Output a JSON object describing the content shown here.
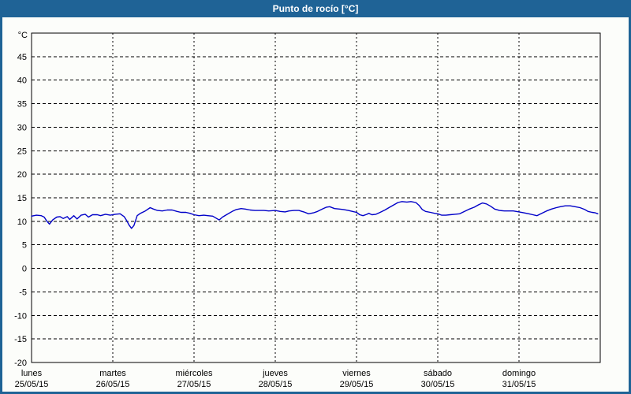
{
  "window": {
    "title": "Punto de rocío [°C]"
  },
  "colors": {
    "titlebar": "#1F6396",
    "frame": "#1F6396",
    "plot_background": "#FCFDFA",
    "plot_border": "#000000",
    "grid": "#000000",
    "line": "#0000C8",
    "title_text": "#FFFFFF",
    "tick_text": "#000000"
  },
  "chart_data": {
    "type": "line",
    "title": "Punto de rocío [°C]",
    "y_unit_label": "°C",
    "ylim": [
      -20,
      50
    ],
    "y_ticks": [
      45,
      40,
      35,
      30,
      25,
      20,
      15,
      10,
      5,
      0,
      -5,
      -10,
      -15,
      -20
    ],
    "xlim_days": [
      0,
      7
    ],
    "grid": true,
    "legend": "none",
    "x_days": [
      {
        "name": "lunes",
        "date": "25/05/15"
      },
      {
        "name": "martes",
        "date": "26/05/15"
      },
      {
        "name": "miércoles",
        "date": "27/05/15"
      },
      {
        "name": "jueves",
        "date": "28/05/15"
      },
      {
        "name": "viernes",
        "date": "29/05/15"
      },
      {
        "name": "sábado",
        "date": "30/05/15"
      },
      {
        "name": "domingo",
        "date": "31/05/15"
      }
    ],
    "series": [
      {
        "name": "Punto de rocío",
        "points": [
          [
            0.0,
            11.1
          ],
          [
            0.06,
            11.3
          ],
          [
            0.12,
            11.2
          ],
          [
            0.155,
            10.9
          ],
          [
            0.19,
            10.0
          ],
          [
            0.22,
            9.4
          ],
          [
            0.26,
            10.3
          ],
          [
            0.31,
            10.9
          ],
          [
            0.35,
            11.0
          ],
          [
            0.39,
            10.6
          ],
          [
            0.44,
            11.0
          ],
          [
            0.47,
            10.4
          ],
          [
            0.52,
            11.2
          ],
          [
            0.56,
            10.5
          ],
          [
            0.61,
            11.3
          ],
          [
            0.66,
            11.5
          ],
          [
            0.7,
            10.9
          ],
          [
            0.75,
            11.4
          ],
          [
            0.81,
            11.4
          ],
          [
            0.85,
            11.2
          ],
          [
            0.91,
            11.5
          ],
          [
            0.97,
            11.3
          ],
          [
            1.03,
            11.5
          ],
          [
            1.09,
            11.6
          ],
          [
            1.14,
            11.0
          ],
          [
            1.17,
            10.2
          ],
          [
            1.2,
            9.2
          ],
          [
            1.23,
            8.5
          ],
          [
            1.26,
            9.1
          ],
          [
            1.3,
            11.2
          ],
          [
            1.34,
            11.7
          ],
          [
            1.4,
            12.2
          ],
          [
            1.46,
            12.9
          ],
          [
            1.5,
            12.6
          ],
          [
            1.55,
            12.3
          ],
          [
            1.61,
            12.2
          ],
          [
            1.67,
            12.4
          ],
          [
            1.73,
            12.4
          ],
          [
            1.79,
            12.1
          ],
          [
            1.84,
            11.9
          ],
          [
            1.9,
            11.9
          ],
          [
            1.95,
            11.7
          ],
          [
            2.0,
            11.4
          ],
          [
            2.06,
            11.2
          ],
          [
            2.12,
            11.3
          ],
          [
            2.17,
            11.2
          ],
          [
            2.23,
            11.1
          ],
          [
            2.28,
            10.6
          ],
          [
            2.31,
            10.3
          ],
          [
            2.35,
            10.9
          ],
          [
            2.41,
            11.5
          ],
          [
            2.47,
            12.1
          ],
          [
            2.52,
            12.5
          ],
          [
            2.58,
            12.7
          ],
          [
            2.63,
            12.6
          ],
          [
            2.69,
            12.4
          ],
          [
            2.75,
            12.3
          ],
          [
            2.81,
            12.3
          ],
          [
            2.86,
            12.3
          ],
          [
            2.92,
            12.2
          ],
          [
            3.0,
            12.3
          ],
          [
            3.06,
            12.1
          ],
          [
            3.12,
            12.0
          ],
          [
            3.17,
            12.2
          ],
          [
            3.23,
            12.3
          ],
          [
            3.29,
            12.3
          ],
          [
            3.35,
            12.0
          ],
          [
            3.41,
            11.6
          ],
          [
            3.47,
            11.8
          ],
          [
            3.52,
            12.1
          ],
          [
            3.58,
            12.6
          ],
          [
            3.63,
            13.0
          ],
          [
            3.67,
            13.1
          ],
          [
            3.73,
            12.7
          ],
          [
            3.79,
            12.6
          ],
          [
            3.84,
            12.5
          ],
          [
            3.9,
            12.3
          ],
          [
            3.95,
            12.1
          ],
          [
            4.0,
            11.9
          ],
          [
            4.04,
            11.4
          ],
          [
            4.08,
            11.2
          ],
          [
            4.13,
            11.5
          ],
          [
            4.15,
            11.7
          ],
          [
            4.19,
            11.4
          ],
          [
            4.24,
            11.5
          ],
          [
            4.29,
            11.9
          ],
          [
            4.35,
            12.4
          ],
          [
            4.41,
            13.0
          ],
          [
            4.47,
            13.6
          ],
          [
            4.51,
            14.0
          ],
          [
            4.56,
            14.2
          ],
          [
            4.62,
            14.1
          ],
          [
            4.67,
            14.2
          ],
          [
            4.73,
            14.0
          ],
          [
            4.77,
            13.4
          ],
          [
            4.81,
            12.5
          ],
          [
            4.85,
            12.1
          ],
          [
            4.91,
            11.9
          ],
          [
            4.96,
            11.7
          ],
          [
            5.0,
            11.6
          ],
          [
            5.05,
            11.3
          ],
          [
            5.1,
            11.3
          ],
          [
            5.15,
            11.4
          ],
          [
            5.21,
            11.5
          ],
          [
            5.27,
            11.6
          ],
          [
            5.33,
            12.1
          ],
          [
            5.39,
            12.6
          ],
          [
            5.45,
            13.0
          ],
          [
            5.5,
            13.5
          ],
          [
            5.55,
            13.9
          ],
          [
            5.6,
            13.7
          ],
          [
            5.65,
            13.2
          ],
          [
            5.7,
            12.6
          ],
          [
            5.76,
            12.3
          ],
          [
            5.82,
            12.2
          ],
          [
            5.87,
            12.2
          ],
          [
            5.93,
            12.2
          ],
          [
            6.0,
            12.0
          ],
          [
            6.06,
            11.8
          ],
          [
            6.12,
            11.6
          ],
          [
            6.17,
            11.4
          ],
          [
            6.22,
            11.2
          ],
          [
            6.28,
            11.7
          ],
          [
            6.34,
            12.2
          ],
          [
            6.4,
            12.6
          ],
          [
            6.46,
            12.9
          ],
          [
            6.51,
            13.1
          ],
          [
            6.57,
            13.3
          ],
          [
            6.63,
            13.3
          ],
          [
            6.69,
            13.1
          ],
          [
            6.75,
            12.9
          ],
          [
            6.81,
            12.5
          ],
          [
            6.85,
            12.1
          ],
          [
            6.9,
            11.9
          ],
          [
            6.94,
            11.8
          ],
          [
            6.97,
            11.6
          ]
        ]
      }
    ]
  }
}
